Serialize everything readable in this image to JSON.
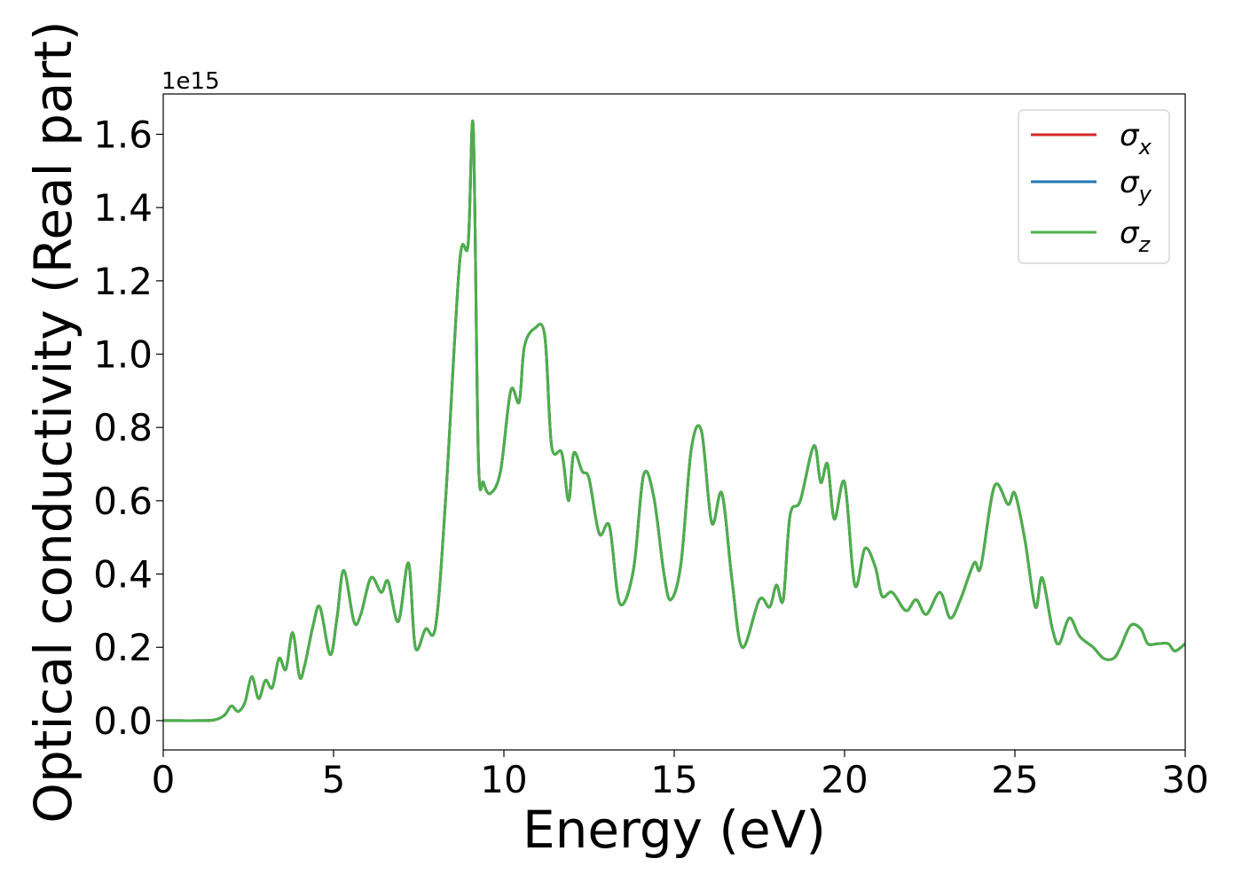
{
  "chart_data": {
    "type": "line",
    "title": "",
    "xlabel": "Energy (eV)",
    "ylabel": "Optical conductivity (Real part)",
    "y_scale_multiplier_label": "1e15",
    "xlim": [
      0,
      30
    ],
    "ylim": [
      -0.08,
      1.71
    ],
    "x_ticks": [
      0,
      5,
      10,
      15,
      20,
      25,
      30
    ],
    "x_tick_labels": [
      "0",
      "5",
      "10",
      "15",
      "20",
      "25",
      "30"
    ],
    "y_ticks": [
      0.0,
      0.2,
      0.4,
      0.6,
      0.8,
      1.0,
      1.2,
      1.4,
      1.6
    ],
    "y_tick_labels": [
      "0.0",
      "0.2",
      "0.4",
      "0.6",
      "0.8",
      "1.0",
      "1.2",
      "1.4",
      "1.6"
    ],
    "grid": false,
    "legend": {
      "placement": "top-right",
      "entries": [
        {
          "base": "σ",
          "sub": "x",
          "color": "#d62728"
        },
        {
          "base": "σ",
          "sub": "y",
          "color": "#1f77b4"
        },
        {
          "base": "σ",
          "sub": "z",
          "color": "#4daf4a"
        }
      ]
    },
    "x": [
      0,
      0.5,
      1.0,
      1.5,
      1.8,
      2.0,
      2.2,
      2.4,
      2.6,
      2.8,
      3.0,
      3.2,
      3.4,
      3.6,
      3.8,
      4.0,
      4.15,
      4.4,
      4.6,
      4.9,
      5.1,
      5.3,
      5.6,
      5.8,
      6.1,
      6.4,
      6.6,
      6.9,
      7.2,
      7.4,
      7.7,
      8.0,
      8.3,
      8.7,
      8.95,
      9.1,
      9.25,
      9.4,
      9.6,
      9.9,
      10.2,
      10.45,
      10.6,
      10.9,
      11.2,
      11.4,
      11.7,
      11.9,
      12.05,
      12.3,
      12.5,
      12.8,
      13.1,
      13.4,
      13.8,
      14.1,
      14.4,
      14.7,
      14.9,
      15.2,
      15.5,
      15.8,
      16.1,
      16.4,
      16.7,
      17.0,
      17.5,
      17.8,
      18.0,
      18.2,
      18.4,
      18.7,
      19.1,
      19.3,
      19.5,
      19.7,
      20.0,
      20.3,
      20.6,
      20.9,
      21.1,
      21.4,
      21.8,
      22.1,
      22.4,
      22.8,
      23.1,
      23.4,
      23.8,
      24.0,
      24.4,
      24.8,
      25.0,
      25.3,
      25.6,
      25.8,
      26.1,
      26.3,
      26.6,
      26.9,
      27.3,
      27.6,
      27.9,
      28.1,
      28.4,
      28.7,
      28.9,
      29.2,
      29.5,
      29.7,
      30.0
    ],
    "series": [
      {
        "name": "σx",
        "color": "#d62728",
        "values": [
          0,
          0,
          0,
          0.002,
          0.015,
          0.04,
          0.025,
          0.05,
          0.12,
          0.06,
          0.11,
          0.09,
          0.17,
          0.14,
          0.24,
          0.12,
          0.15,
          0.26,
          0.31,
          0.18,
          0.28,
          0.41,
          0.27,
          0.29,
          0.39,
          0.35,
          0.38,
          0.27,
          0.43,
          0.2,
          0.25,
          0.26,
          0.62,
          1.25,
          1.3,
          1.62,
          0.72,
          0.65,
          0.62,
          0.68,
          0.9,
          0.87,
          1.02,
          1.07,
          1.05,
          0.75,
          0.73,
          0.6,
          0.73,
          0.68,
          0.66,
          0.51,
          0.53,
          0.32,
          0.41,
          0.67,
          0.61,
          0.4,
          0.33,
          0.43,
          0.74,
          0.79,
          0.54,
          0.62,
          0.38,
          0.2,
          0.33,
          0.31,
          0.37,
          0.33,
          0.56,
          0.6,
          0.75,
          0.65,
          0.7,
          0.55,
          0.65,
          0.37,
          0.47,
          0.42,
          0.34,
          0.35,
          0.3,
          0.33,
          0.29,
          0.35,
          0.28,
          0.33,
          0.43,
          0.42,
          0.64,
          0.59,
          0.62,
          0.49,
          0.31,
          0.39,
          0.25,
          0.21,
          0.28,
          0.23,
          0.2,
          0.17,
          0.17,
          0.2,
          0.26,
          0.25,
          0.21,
          0.21,
          0.21,
          0.19,
          0.21
        ]
      },
      {
        "name": "σy",
        "color": "#1f77b4",
        "values": [
          0,
          0,
          0,
          0.002,
          0.015,
          0.04,
          0.025,
          0.05,
          0.12,
          0.06,
          0.11,
          0.09,
          0.17,
          0.14,
          0.24,
          0.12,
          0.15,
          0.26,
          0.31,
          0.18,
          0.28,
          0.41,
          0.27,
          0.29,
          0.39,
          0.35,
          0.38,
          0.27,
          0.43,
          0.2,
          0.25,
          0.26,
          0.62,
          1.25,
          1.3,
          1.62,
          0.72,
          0.65,
          0.62,
          0.68,
          0.9,
          0.87,
          1.02,
          1.07,
          1.05,
          0.75,
          0.73,
          0.6,
          0.73,
          0.68,
          0.66,
          0.51,
          0.53,
          0.32,
          0.41,
          0.67,
          0.61,
          0.4,
          0.33,
          0.43,
          0.74,
          0.79,
          0.54,
          0.62,
          0.38,
          0.2,
          0.33,
          0.31,
          0.37,
          0.33,
          0.56,
          0.6,
          0.75,
          0.65,
          0.7,
          0.55,
          0.65,
          0.37,
          0.47,
          0.42,
          0.34,
          0.35,
          0.3,
          0.33,
          0.29,
          0.35,
          0.28,
          0.33,
          0.43,
          0.42,
          0.64,
          0.59,
          0.62,
          0.49,
          0.31,
          0.39,
          0.25,
          0.21,
          0.28,
          0.23,
          0.2,
          0.17,
          0.17,
          0.2,
          0.26,
          0.25,
          0.21,
          0.21,
          0.21,
          0.19,
          0.21
        ]
      },
      {
        "name": "σz",
        "color": "#4daf4a",
        "values": [
          0,
          0,
          0,
          0.002,
          0.015,
          0.04,
          0.025,
          0.05,
          0.12,
          0.06,
          0.11,
          0.09,
          0.17,
          0.14,
          0.24,
          0.12,
          0.15,
          0.26,
          0.31,
          0.18,
          0.28,
          0.41,
          0.27,
          0.29,
          0.39,
          0.35,
          0.38,
          0.27,
          0.43,
          0.2,
          0.25,
          0.26,
          0.62,
          1.25,
          1.3,
          1.62,
          0.72,
          0.65,
          0.62,
          0.68,
          0.9,
          0.87,
          1.02,
          1.07,
          1.05,
          0.75,
          0.73,
          0.6,
          0.73,
          0.68,
          0.66,
          0.51,
          0.53,
          0.32,
          0.41,
          0.67,
          0.61,
          0.4,
          0.33,
          0.43,
          0.74,
          0.79,
          0.54,
          0.62,
          0.38,
          0.2,
          0.33,
          0.31,
          0.37,
          0.33,
          0.56,
          0.6,
          0.75,
          0.65,
          0.7,
          0.55,
          0.65,
          0.37,
          0.47,
          0.42,
          0.34,
          0.35,
          0.3,
          0.33,
          0.29,
          0.35,
          0.28,
          0.33,
          0.43,
          0.42,
          0.64,
          0.59,
          0.62,
          0.49,
          0.31,
          0.39,
          0.25,
          0.21,
          0.28,
          0.23,
          0.2,
          0.17,
          0.17,
          0.2,
          0.26,
          0.25,
          0.21,
          0.21,
          0.21,
          0.19,
          0.21
        ]
      }
    ]
  }
}
